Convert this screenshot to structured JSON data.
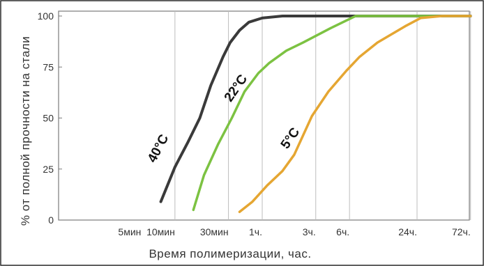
{
  "chart_data": {
    "type": "line",
    "title": "",
    "xlabel": "Время полимеризации, час.",
    "ylabel": "% от полной прочности на стали",
    "x_scale": "log",
    "x_unit": "hours",
    "x_ticks": [
      {
        "label": "5мин",
        "value": 0.0833
      },
      {
        "label": "10мин",
        "value": 0.1667
      },
      {
        "label": "30мин",
        "value": 0.5
      },
      {
        "label": "1ч.",
        "value": 1
      },
      {
        "label": "3ч.",
        "value": 3
      },
      {
        "label": "6ч.",
        "value": 6
      },
      {
        "label": "24ч.",
        "value": 24
      },
      {
        "label": "72ч.",
        "value": 72
      }
    ],
    "y_ticks": [
      {
        "label": "0",
        "value": 0
      },
      {
        "label": "25",
        "value": 25
      },
      {
        "label": "50",
        "value": 50
      },
      {
        "label": "75",
        "value": 75
      },
      {
        "label": "100",
        "value": 100
      }
    ],
    "ylim": [
      0,
      100
    ],
    "grid": {
      "vertical": true,
      "horizontal": false
    },
    "series": [
      {
        "name": "40°C",
        "color": "#3a3a3a",
        "points": [
          [
            0.1247,
            9
          ],
          [
            0.1667,
            26
          ],
          [
            0.2169,
            38
          ],
          [
            0.2776,
            50
          ],
          [
            0.3481,
            66
          ],
          [
            0.4474,
            80
          ],
          [
            0.5178,
            87
          ],
          [
            0.6282,
            93
          ],
          [
            0.7617,
            97
          ],
          [
            1.0,
            99
          ],
          [
            1.514,
            100
          ],
          [
            3.0,
            100
          ],
          [
            10.0,
            100
          ],
          [
            28.3,
            100
          ],
          [
            72.0,
            100
          ]
        ]
      },
      {
        "name": "22°C",
        "color": "#7cc242",
        "points": [
          [
            0.2434,
            5
          ],
          [
            0.3025,
            22
          ],
          [
            0.4028,
            37
          ],
          [
            0.5356,
            50
          ],
          [
            0.6965,
            63
          ],
          [
            0.924,
            72
          ],
          [
            1.155,
            77
          ],
          [
            1.639,
            83
          ],
          [
            2.314,
            87
          ],
          [
            4.058,
            94
          ],
          [
            6.802,
            100
          ],
          [
            18.0,
            100
          ],
          [
            40.0,
            100
          ],
          [
            72.0,
            100
          ]
        ]
      },
      {
        "name": "5°C",
        "color": "#e5a632",
        "points": [
          [
            0.6282,
            4
          ],
          [
            0.8186,
            9
          ],
          [
            1.108,
            17
          ],
          [
            1.512,
            24
          ],
          [
            1.929,
            32
          ],
          [
            2.776,
            51
          ],
          [
            3.898,
            63
          ],
          [
            5.591,
            73
          ],
          [
            7.382,
            80
          ],
          [
            10.65,
            87
          ],
          [
            18.78,
            95
          ],
          [
            25.81,
            99
          ],
          [
            40.0,
            100
          ],
          [
            72.0,
            100
          ]
        ]
      }
    ]
  }
}
